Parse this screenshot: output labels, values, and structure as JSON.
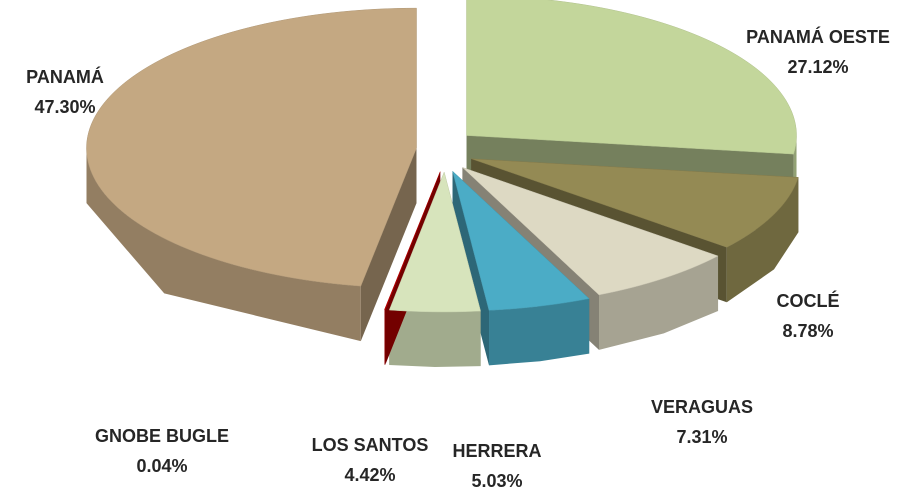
{
  "chart_data": {
    "type": "pie",
    "categories": [
      "PANAMÁ OESTE",
      "COCLÉ",
      "VERAGUAS",
      "HERRERA",
      "LOS SANTOS",
      "GNOBE BUGLE",
      "PANAMÁ"
    ],
    "values": [
      27.12,
      8.78,
      7.31,
      5.03,
      4.42,
      0.04,
      47.3
    ],
    "value_labels": [
      "27.12%",
      "8.78%",
      "7.31%",
      "5.03%",
      "4.42%",
      "0.04%",
      "47.30%"
    ],
    "colors": [
      "#c3d69b",
      "#948a54",
      "#ddd9c3",
      "#4bacc6",
      "#d7e4bc",
      "#c00000",
      "#c4a882"
    ]
  }
}
